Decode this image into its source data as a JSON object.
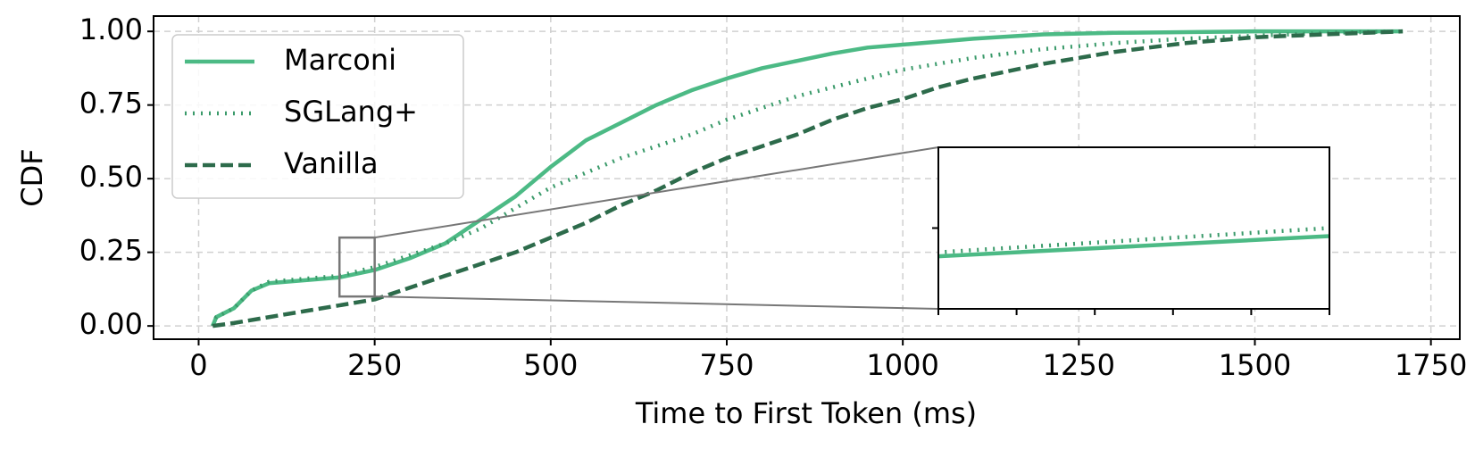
{
  "chart_data": {
    "type": "line",
    "x_label": "Time to First Token (ms)",
    "y_label": "CDF",
    "xlim": [
      -64,
      1791
    ],
    "ylim": [
      -0.045,
      1.052
    ],
    "xticks": [
      0,
      250,
      500,
      750,
      1000,
      1250,
      1500,
      1750
    ],
    "yticks": [
      {
        "value": 0,
        "label": "0.00"
      },
      {
        "value": 0.25,
        "label": "0.25"
      },
      {
        "value": 0.5,
        "label": "0.50"
      },
      {
        "value": 0.75,
        "label": "0.75"
      },
      {
        "value": 1,
        "label": "1.00"
      }
    ],
    "grid": true,
    "legend": "upper left",
    "series": [
      {
        "name": "Marconi",
        "color": "#4cba85",
        "style": "solid",
        "x": [
          20,
          25,
          50,
          75,
          100,
          150,
          200,
          250,
          300,
          350,
          400,
          450,
          500,
          550,
          600,
          650,
          700,
          750,
          800,
          850,
          900,
          950,
          1000,
          1050,
          1100,
          1200,
          1300,
          1500,
          1710
        ],
        "values": [
          0,
          0.03,
          0.06,
          0.12,
          0.145,
          0.155,
          0.165,
          0.19,
          0.23,
          0.28,
          0.36,
          0.44,
          0.54,
          0.63,
          0.69,
          0.75,
          0.8,
          0.84,
          0.875,
          0.9,
          0.925,
          0.945,
          0.955,
          0.965,
          0.975,
          0.99,
          0.995,
          1,
          1
        ]
      },
      {
        "name": "SGLang+",
        "color": "#3a9a6a",
        "style": "dotted",
        "x": [
          20,
          25,
          50,
          75,
          100,
          150,
          200,
          250,
          300,
          350,
          400,
          450,
          500,
          550,
          600,
          650,
          700,
          750,
          800,
          850,
          900,
          950,
          1000,
          1050,
          1100,
          1200,
          1300,
          1400,
          1500,
          1600,
          1710
        ],
        "values": [
          0,
          0.03,
          0.06,
          0.12,
          0.15,
          0.16,
          0.17,
          0.2,
          0.24,
          0.28,
          0.33,
          0.4,
          0.47,
          0.52,
          0.57,
          0.61,
          0.65,
          0.7,
          0.74,
          0.78,
          0.81,
          0.84,
          0.87,
          0.89,
          0.91,
          0.94,
          0.96,
          0.975,
          0.985,
          0.995,
          1
        ]
      },
      {
        "name": "Vanilla",
        "color": "#2d6b4b",
        "style": "dashed",
        "x": [
          20,
          50,
          100,
          150,
          200,
          250,
          300,
          350,
          400,
          450,
          500,
          550,
          600,
          650,
          700,
          750,
          800,
          850,
          900,
          950,
          1000,
          1050,
          1100,
          1200,
          1300,
          1400,
          1500,
          1600,
          1710
        ],
        "values": [
          0,
          0.01,
          0.03,
          0.05,
          0.07,
          0.09,
          0.13,
          0.17,
          0.21,
          0.25,
          0.3,
          0.35,
          0.41,
          0.46,
          0.52,
          0.57,
          0.61,
          0.65,
          0.7,
          0.74,
          0.77,
          0.81,
          0.84,
          0.89,
          0.93,
          0.96,
          0.98,
          0.99,
          1
        ]
      }
    ],
    "inset": {
      "xlim": [
        200,
        250
      ],
      "ylim": [
        0.1,
        0.3
      ],
      "xticks": [
        200,
        210,
        220,
        230,
        240,
        250
      ],
      "yticks": [
        0.2
      ]
    }
  }
}
